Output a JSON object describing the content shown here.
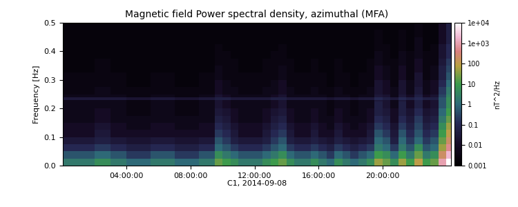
{
  "chart_data": {
    "type": "heatmap",
    "title": "Magnetic field Power spectral density, azimuthal (MFA)",
    "x_label": "C1, 2014-09-08",
    "y_label": "Frequency [Hz]",
    "xlim": [
      0,
      24.3
    ],
    "xticks": [
      {
        "value": 4,
        "label": "04:00:00"
      },
      {
        "value": 8,
        "label": "08:00:00"
      },
      {
        "value": 12,
        "label": "12:00:00"
      },
      {
        "value": 16,
        "label": "16:00:00"
      },
      {
        "value": 20,
        "label": "20:00:00"
      }
    ],
    "ylim": [
      0,
      0.5
    ],
    "yticks": [
      {
        "value": 0,
        "label": "0.0"
      },
      0.1,
      0.2,
      0.3,
      0.4,
      0.5
    ],
    "grid": false,
    "x_edges": [
      0,
      0.5,
      1,
      1.5,
      2,
      2.5,
      3,
      3.5,
      4,
      4.5,
      5,
      5.5,
      6,
      6.5,
      7,
      7.5,
      8,
      8.5,
      9,
      9.5,
      10,
      10.5,
      11,
      11.5,
      12,
      12.5,
      13,
      13.5,
      14,
      14.5,
      15,
      15.5,
      16,
      16.5,
      17,
      17.5,
      18,
      18.5,
      19,
      19.5,
      20,
      20.5,
      21,
      21.5,
      22,
      22.5,
      23,
      23.5,
      24,
      24.3
    ],
    "y_edges": [
      0,
      0.025,
      0.05,
      0.075,
      0.1,
      0.125,
      0.15,
      0.175,
      0.2,
      0.225,
      0.23,
      0.24,
      0.25,
      0.275,
      0.3,
      0.325,
      0.35,
      0.375,
      0.4,
      0.425,
      0.45,
      0.475,
      0.5
    ],
    "colorbar_range": [
      0.001,
      10000
    ],
    "colorbar_ticks": [
      0.001,
      0.01,
      0.1,
      1,
      10,
      100,
      {
        "value": 1000,
        "label": "1e+03"
      },
      {
        "value": 10000,
        "label": "1e+04"
      }
    ],
    "colorbar_label": "nT^2/Hz",
    "cells": [
      [
        2,
        2,
        2,
        2,
        5,
        5,
        2,
        2,
        1,
        1,
        1,
        2,
        2,
        2,
        1,
        1,
        1,
        2,
        2,
        20,
        10,
        5,
        2,
        2,
        2,
        5,
        10,
        20,
        5,
        2,
        2,
        5,
        2,
        1,
        5,
        2,
        1,
        2,
        5,
        50,
        20,
        5,
        50,
        10,
        100,
        10,
        20,
        1000,
        10000
      ],
      [
        0.5,
        0.5,
        0.5,
        0.5,
        1,
        1,
        0.5,
        0.5,
        0.2,
        0.2,
        0.2,
        0.5,
        0.5,
        0.5,
        0.2,
        0.2,
        0.2,
        0.5,
        0.5,
        5,
        2,
        1,
        0.5,
        0.5,
        0.5,
        1,
        2,
        5,
        1,
        0.5,
        0.5,
        1,
        0.5,
        0.2,
        1,
        0.5,
        0.2,
        0.5,
        1,
        10,
        5,
        1,
        10,
        2,
        20,
        2,
        5,
        200,
        2000
      ],
      [
        0.1,
        0.1,
        0.1,
        0.1,
        0.2,
        0.2,
        0.1,
        0.1,
        0.05,
        0.05,
        0.05,
        0.1,
        0.1,
        0.1,
        0.05,
        0.05,
        0.05,
        0.1,
        0.1,
        1,
        0.5,
        0.2,
        0.1,
        0.1,
        0.1,
        0.2,
        0.5,
        1,
        0.2,
        0.1,
        0.1,
        0.2,
        0.1,
        0.05,
        0.2,
        0.1,
        0.05,
        0.1,
        0.2,
        2,
        1,
        0.2,
        2,
        0.5,
        5,
        0.5,
        1,
        50,
        500
      ],
      [
        0.03,
        0.03,
        0.03,
        0.03,
        0.05,
        0.05,
        0.03,
        0.03,
        0.02,
        0.02,
        0.02,
        0.03,
        0.03,
        0.03,
        0.02,
        0.02,
        0.02,
        0.03,
        0.03,
        0.5,
        0.2,
        0.05,
        0.03,
        0.03,
        0.03,
        0.05,
        0.2,
        0.5,
        0.05,
        0.03,
        0.03,
        0.05,
        0.03,
        0.02,
        0.05,
        0.03,
        0.02,
        0.03,
        0.05,
        1,
        0.5,
        0.05,
        1,
        0.2,
        1,
        0.2,
        0.5,
        20,
        200
      ],
      [
        0.01,
        0.01,
        0.01,
        0.01,
        0.03,
        0.03,
        0.01,
        0.01,
        0.01,
        0.01,
        0.01,
        0.01,
        0.01,
        0.01,
        0.01,
        0.01,
        0.01,
        0.01,
        0.01,
        0.2,
        0.1,
        0.03,
        0.01,
        0.01,
        0.01,
        0.03,
        0.1,
        0.2,
        0.03,
        0.01,
        0.01,
        0.03,
        0.01,
        0.01,
        0.03,
        0.01,
        0.01,
        0.01,
        0.03,
        0.5,
        0.2,
        0.03,
        0.5,
        0.1,
        0.5,
        0.1,
        0.2,
        10,
        100
      ],
      [
        0.01,
        0.01,
        0.01,
        0.01,
        0.02,
        0.02,
        0.01,
        0.01,
        0.005,
        0.005,
        0.005,
        0.01,
        0.01,
        0.01,
        0.005,
        0.005,
        0.005,
        0.01,
        0.01,
        0.1,
        0.05,
        0.02,
        0.01,
        0.01,
        0.01,
        0.02,
        0.05,
        0.1,
        0.02,
        0.01,
        0.01,
        0.02,
        0.01,
        0.005,
        0.02,
        0.01,
        0.005,
        0.01,
        0.02,
        0.2,
        0.1,
        0.02,
        0.2,
        0.05,
        0.3,
        0.05,
        0.1,
        5,
        50
      ],
      [
        0.005,
        0.005,
        0.005,
        0.005,
        0.01,
        0.01,
        0.005,
        0.005,
        0.005,
        0.005,
        0.005,
        0.005,
        0.005,
        0.005,
        0.005,
        0.005,
        0.005,
        0.005,
        0.005,
        0.05,
        0.03,
        0.01,
        0.005,
        0.005,
        0.005,
        0.01,
        0.03,
        0.05,
        0.01,
        0.005,
        0.005,
        0.01,
        0.005,
        0.005,
        0.01,
        0.005,
        0.005,
        0.005,
        0.01,
        0.1,
        0.05,
        0.01,
        0.1,
        0.03,
        0.2,
        0.03,
        0.05,
        2,
        20
      ],
      [
        0.005,
        0.005,
        0.005,
        0.005,
        0.01,
        0.01,
        0.005,
        0.005,
        0.003,
        0.003,
        0.003,
        0.005,
        0.005,
        0.005,
        0.003,
        0.003,
        0.003,
        0.005,
        0.005,
        0.03,
        0.02,
        0.01,
        0.005,
        0.005,
        0.005,
        0.01,
        0.02,
        0.03,
        0.01,
        0.005,
        0.005,
        0.01,
        0.005,
        0.003,
        0.01,
        0.005,
        0.003,
        0.005,
        0.01,
        0.05,
        0.03,
        0.01,
        0.05,
        0.02,
        0.1,
        0.02,
        0.03,
        1,
        10
      ],
      [
        0.005,
        0.005,
        0.005,
        0.005,
        0.005,
        0.005,
        0.005,
        0.005,
        0.003,
        0.003,
        0.003,
        0.005,
        0.005,
        0.005,
        0.003,
        0.003,
        0.003,
        0.005,
        0.005,
        0.02,
        0.01,
        0.005,
        0.005,
        0.005,
        0.005,
        0.005,
        0.01,
        0.02,
        0.005,
        0.005,
        0.005,
        0.005,
        0.005,
        0.003,
        0.005,
        0.005,
        0.003,
        0.005,
        0.005,
        0.05,
        0.02,
        0.005,
        0.05,
        0.01,
        0.05,
        0.01,
        0.02,
        0.5,
        5
      ],
      [
        0.005,
        0.005,
        0.005,
        0.005,
        0.005,
        0.005,
        0.005,
        0.005,
        0.003,
        0.003,
        0.003,
        0.005,
        0.005,
        0.005,
        0.003,
        0.003,
        0.003,
        0.005,
        0.005,
        0.02,
        0.01,
        0.005,
        0.005,
        0.005,
        0.005,
        0.005,
        0.01,
        0.02,
        0.005,
        0.005,
        0.005,
        0.005,
        0.005,
        0.003,
        0.005,
        0.005,
        0.003,
        0.005,
        0.005,
        0.03,
        0.02,
        0.005,
        0.03,
        0.01,
        0.05,
        0.01,
        0.02,
        0.5,
        5
      ],
      [
        0.03,
        0.03,
        0.03,
        0.03,
        0.03,
        0.03,
        0.03,
        0.03,
        0.02,
        0.02,
        0.02,
        0.03,
        0.03,
        0.03,
        0.02,
        0.02,
        0.02,
        0.03,
        0.03,
        0.05,
        0.05,
        0.03,
        0.03,
        0.03,
        0.03,
        0.03,
        0.05,
        0.05,
        0.03,
        0.03,
        0.03,
        0.03,
        0.03,
        0.02,
        0.03,
        0.03,
        0.02,
        0.03,
        0.03,
        0.1,
        0.05,
        0.03,
        0.1,
        0.05,
        0.1,
        0.05,
        0.05,
        0.5,
        5
      ],
      [
        0.005,
        0.005,
        0.005,
        0.005,
        0.005,
        0.005,
        0.005,
        0.005,
        0.003,
        0.003,
        0.003,
        0.005,
        0.005,
        0.005,
        0.003,
        0.003,
        0.003,
        0.005,
        0.005,
        0.02,
        0.01,
        0.005,
        0.005,
        0.005,
        0.005,
        0.005,
        0.01,
        0.02,
        0.005,
        0.005,
        0.005,
        0.005,
        0.005,
        0.003,
        0.005,
        0.005,
        0.003,
        0.005,
        0.005,
        0.03,
        0.02,
        0.005,
        0.03,
        0.01,
        0.05,
        0.01,
        0.02,
        0.3,
        3
      ],
      [
        0.003,
        0.003,
        0.003,
        0.003,
        0.005,
        0.005,
        0.003,
        0.003,
        0.003,
        0.003,
        0.003,
        0.003,
        0.003,
        0.003,
        0.003,
        0.003,
        0.003,
        0.003,
        0.003,
        0.01,
        0.005,
        0.005,
        0.003,
        0.003,
        0.003,
        0.005,
        0.005,
        0.01,
        0.005,
        0.003,
        0.003,
        0.005,
        0.003,
        0.003,
        0.005,
        0.003,
        0.003,
        0.003,
        0.005,
        0.02,
        0.01,
        0.005,
        0.02,
        0.005,
        0.03,
        0.005,
        0.01,
        0.2,
        2
      ],
      [
        0.003,
        0.003,
        0.003,
        0.003,
        0.003,
        0.003,
        0.003,
        0.003,
        0.002,
        0.002,
        0.002,
        0.003,
        0.003,
        0.003,
        0.002,
        0.002,
        0.002,
        0.003,
        0.003,
        0.01,
        0.005,
        0.003,
        0.003,
        0.003,
        0.003,
        0.003,
        0.005,
        0.01,
        0.003,
        0.003,
        0.003,
        0.003,
        0.003,
        0.002,
        0.003,
        0.003,
        0.002,
        0.003,
        0.003,
        0.02,
        0.01,
        0.003,
        0.02,
        0.005,
        0.02,
        0.005,
        0.01,
        0.1,
        1
      ],
      [
        0.003,
        0.003,
        0.003,
        0.003,
        0.003,
        0.003,
        0.003,
        0.003,
        0.002,
        0.002,
        0.002,
        0.003,
        0.003,
        0.003,
        0.002,
        0.002,
        0.002,
        0.003,
        0.003,
        0.005,
        0.003,
        0.003,
        0.003,
        0.003,
        0.003,
        0.003,
        0.003,
        0.005,
        0.003,
        0.003,
        0.003,
        0.003,
        0.003,
        0.002,
        0.003,
        0.003,
        0.002,
        0.003,
        0.003,
        0.01,
        0.005,
        0.003,
        0.01,
        0.003,
        0.02,
        0.003,
        0.005,
        0.05,
        0.5
      ],
      [
        0.002,
        0.002,
        0.002,
        0.002,
        0.003,
        0.003,
        0.002,
        0.002,
        0.002,
        0.002,
        0.002,
        0.002,
        0.002,
        0.002,
        0.002,
        0.002,
        0.002,
        0.002,
        0.002,
        0.005,
        0.003,
        0.003,
        0.002,
        0.002,
        0.002,
        0.003,
        0.003,
        0.005,
        0.003,
        0.002,
        0.002,
        0.003,
        0.002,
        0.002,
        0.003,
        0.002,
        0.002,
        0.002,
        0.003,
        0.01,
        0.005,
        0.003,
        0.01,
        0.003,
        0.01,
        0.003,
        0.005,
        0.05,
        0.3
      ],
      [
        0.002,
        0.002,
        0.002,
        0.002,
        0.003,
        0.003,
        0.002,
        0.002,
        0.002,
        0.002,
        0.002,
        0.002,
        0.002,
        0.002,
        0.002,
        0.002,
        0.002,
        0.002,
        0.002,
        0.003,
        0.003,
        0.003,
        0.002,
        0.002,
        0.002,
        0.003,
        0.003,
        0.003,
        0.003,
        0.002,
        0.002,
        0.003,
        0.002,
        0.002,
        0.003,
        0.002,
        0.002,
        0.002,
        0.003,
        0.005,
        0.003,
        0.003,
        0.005,
        0.003,
        0.01,
        0.003,
        0.003,
        0.03,
        0.2
      ],
      [
        0.002,
        0.002,
        0.002,
        0.002,
        0.002,
        0.002,
        0.002,
        0.002,
        0.002,
        0.002,
        0.002,
        0.002,
        0.002,
        0.002,
        0.002,
        0.002,
        0.002,
        0.002,
        0.002,
        0.003,
        0.003,
        0.002,
        0.002,
        0.002,
        0.002,
        0.002,
        0.003,
        0.003,
        0.002,
        0.002,
        0.002,
        0.002,
        0.002,
        0.002,
        0.002,
        0.002,
        0.002,
        0.002,
        0.002,
        0.005,
        0.003,
        0.002,
        0.005,
        0.003,
        0.005,
        0.003,
        0.003,
        0.02,
        0.1
      ],
      [
        0.002,
        0.002,
        0.002,
        0.002,
        0.002,
        0.002,
        0.002,
        0.002,
        0.002,
        0.002,
        0.002,
        0.002,
        0.002,
        0.002,
        0.002,
        0.002,
        0.002,
        0.002,
        0.002,
        0.003,
        0.002,
        0.002,
        0.002,
        0.002,
        0.002,
        0.002,
        0.002,
        0.003,
        0.002,
        0.002,
        0.002,
        0.002,
        0.002,
        0.002,
        0.002,
        0.002,
        0.002,
        0.002,
        0.002,
        0.003,
        0.003,
        0.002,
        0.003,
        0.002,
        0.005,
        0.002,
        0.003,
        0.02,
        0.1
      ],
      [
        0.002,
        0.002,
        0.002,
        0.002,
        0.002,
        0.002,
        0.002,
        0.002,
        0.002,
        0.002,
        0.002,
        0.002,
        0.002,
        0.002,
        0.002,
        0.002,
        0.002,
        0.002,
        0.002,
        0.002,
        0.002,
        0.002,
        0.002,
        0.002,
        0.002,
        0.002,
        0.002,
        0.002,
        0.002,
        0.002,
        0.002,
        0.002,
        0.002,
        0.002,
        0.002,
        0.002,
        0.002,
        0.002,
        0.002,
        0.003,
        0.002,
        0.002,
        0.003,
        0.002,
        0.005,
        0.002,
        0.002,
        0.01,
        0.05
      ],
      [
        0.002,
        0.002,
        0.002,
        0.002,
        0.002,
        0.002,
        0.002,
        0.002,
        0.002,
        0.002,
        0.002,
        0.002,
        0.002,
        0.002,
        0.002,
        0.002,
        0.002,
        0.002,
        0.002,
        0.002,
        0.002,
        0.002,
        0.002,
        0.002,
        0.002,
        0.002,
        0.002,
        0.002,
        0.002,
        0.002,
        0.002,
        0.002,
        0.002,
        0.002,
        0.002,
        0.002,
        0.002,
        0.002,
        0.002,
        0.003,
        0.002,
        0.002,
        0.003,
        0.002,
        0.003,
        0.002,
        0.002,
        0.01,
        0.05
      ],
      [
        0.002,
        0.002,
        0.002,
        0.002,
        0.002,
        0.002,
        0.002,
        0.002,
        0.002,
        0.002,
        0.002,
        0.002,
        0.002,
        0.002,
        0.002,
        0.002,
        0.002,
        0.002,
        0.002,
        0.002,
        0.002,
        0.002,
        0.002,
        0.002,
        0.002,
        0.002,
        0.002,
        0.002,
        0.002,
        0.002,
        0.002,
        0.002,
        0.002,
        0.002,
        0.002,
        0.002,
        0.002,
        0.002,
        0.002,
        0.002,
        0.002,
        0.002,
        0.002,
        0.002,
        0.003,
        0.002,
        0.002,
        0.01,
        0.05
      ]
    ]
  }
}
